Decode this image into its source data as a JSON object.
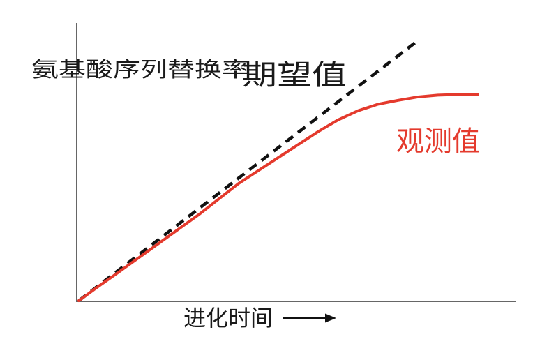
{
  "figure": {
    "y_axis_label": "氨基酸序列替换率",
    "x_axis_label": "进化时间",
    "expected_label": "期望值",
    "observed_label": "观测值"
  },
  "colors": {
    "observed_red": "#e43a2d",
    "expected_black": "#111111",
    "axis_gray": "#666666",
    "background": "#ffffff"
  },
  "chart_data": {
    "type": "line",
    "title": "",
    "xlabel": "进化时间",
    "ylabel": "氨基酸序列替换率",
    "legend_position": "inline-annotations",
    "grid": false,
    "axes_note": "conceptual diagram: no ticks or numeric scales, arrow glyph on x-axis label, both curves start at origin",
    "xlim": [
      0,
      110
    ],
    "ylim": [
      0,
      110
    ],
    "series": [
      {
        "name": "期望值",
        "style": "dashed",
        "color": "#111111",
        "x": [
          0,
          85
        ],
        "y": [
          0,
          100
        ]
      },
      {
        "name": "观测值",
        "style": "solid",
        "color": "#e43a2d",
        "x": [
          0,
          5,
          10,
          15,
          20,
          25,
          30,
          35,
          40,
          45,
          50,
          55,
          60,
          65,
          70,
          75,
          80,
          85,
          90,
          95,
          100
        ],
        "y": [
          0,
          5.6,
          11,
          16.5,
          22,
          27.5,
          33,
          39,
          45,
          50,
          55,
          60,
          65,
          69.5,
          73,
          75.5,
          77,
          78.3,
          79,
          79.2,
          79.2
        ]
      }
    ]
  }
}
